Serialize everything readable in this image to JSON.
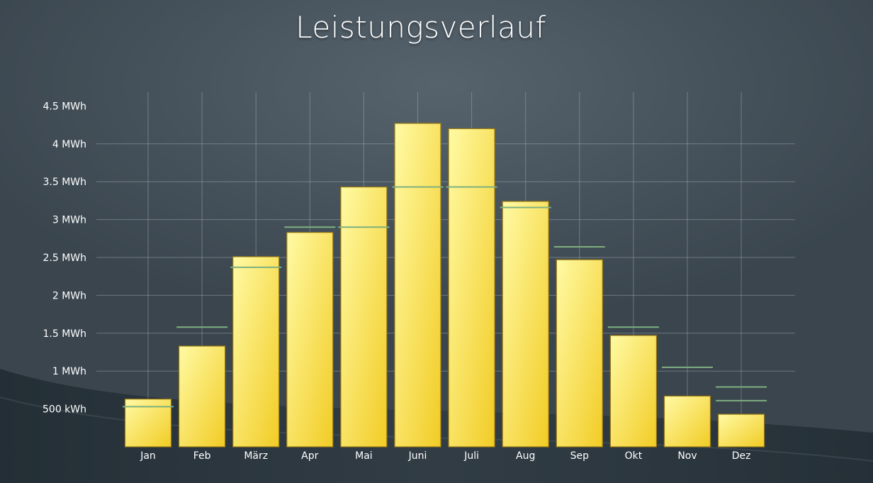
{
  "chart_data": {
    "type": "bar",
    "title": "Leistungsverlauf",
    "categories": [
      "Jan",
      "Feb",
      "März",
      "Apr",
      "Mai",
      "Juni",
      "Juli",
      "Aug",
      "Sep",
      "Okt",
      "Nov",
      "Dez"
    ],
    "series": [
      {
        "values": [
          0.63,
          1.33,
          2.51,
          2.83,
          3.43,
          4.27,
          4.2,
          3.24,
          2.47,
          1.47,
          0.67,
          0.43
        ]
      },
      {
        "type": "reference-line",
        "values": [
          0.53,
          1.58,
          2.37,
          2.9,
          2.9,
          3.43,
          3.43,
          3.16,
          2.64,
          1.58,
          1.05,
          0.79
        ]
      }
    ],
    "extra_reference": {
      "category": "Dez",
      "value": 0.61
    },
    "y_ticks": [
      {
        "value": 0.5,
        "label": "500 kWh"
      },
      {
        "value": 1,
        "label": "1 MWh"
      },
      {
        "value": 1.5,
        "label": "1.5 MWh"
      },
      {
        "value": 2,
        "label": "2 MWh"
      },
      {
        "value": 2.5,
        "label": "2.5 MWh"
      },
      {
        "value": 3,
        "label": "3 MWh"
      },
      {
        "value": 3.5,
        "label": "3.5 MWh"
      },
      {
        "value": 4,
        "label": "4 MWh"
      },
      {
        "value": 4.5,
        "label": "4.5 MWh"
      }
    ],
    "ylim": [
      0,
      4.7
    ],
    "grid": true,
    "colors": {
      "bar_light": "#fffaa4",
      "bar_dark": "#f2cc25",
      "bar_border": "#9a7a14",
      "reference_line": "#7fb07e",
      "grid": "#aab4bb"
    }
  }
}
